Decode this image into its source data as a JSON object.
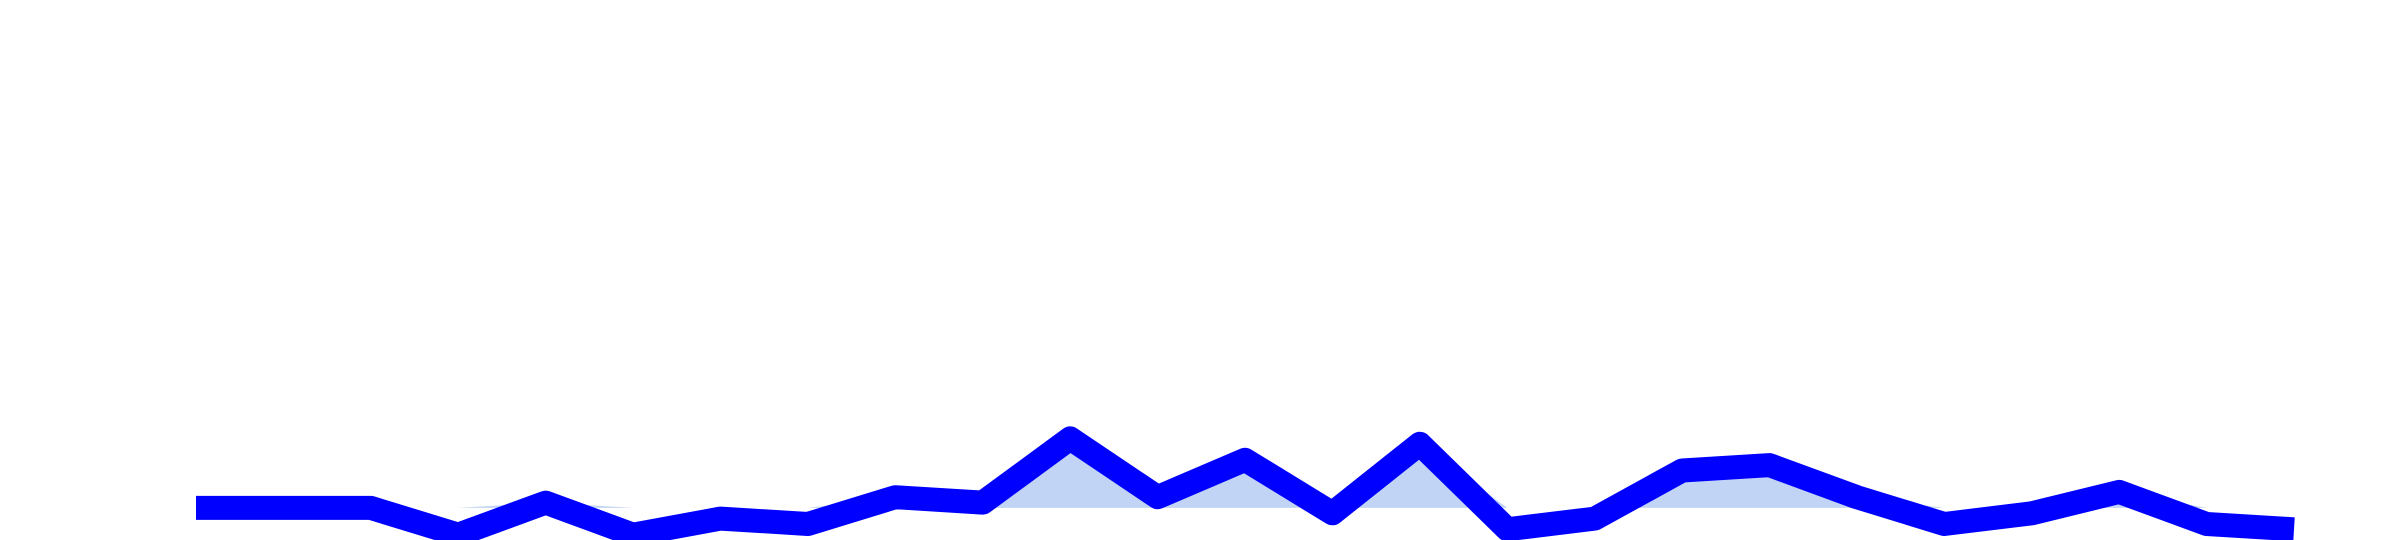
{
  "chart_data": {
    "type": "area",
    "title": "",
    "xlabel": "",
    "ylabel": "",
    "x": [
      1,
      2,
      3,
      4,
      5,
      6,
      7,
      8,
      9,
      10,
      11,
      12,
      13,
      14,
      15,
      16,
      17,
      18,
      19,
      20,
      21,
      22,
      23,
      24,
      25
    ],
    "series": [
      {
        "values": [
          0,
          0,
          0,
          -0.5,
          0.1,
          -0.5,
          -0.2,
          -0.3,
          0.2,
          0.1,
          1.3,
          0.2,
          0.9,
          -0.1,
          1.2,
          -0.4,
          -0.2,
          0.7,
          0.8,
          0.2,
          -0.3,
          -0.1,
          0.3,
          -0.3,
          -0.4
        ],
        "line_color": "#0000ff",
        "fill_color": "#c2d4f5"
      }
    ],
    "ylim": [
      -0.6,
      9.5
    ],
    "grid": false,
    "legend": "none",
    "axes_visible": false
  }
}
